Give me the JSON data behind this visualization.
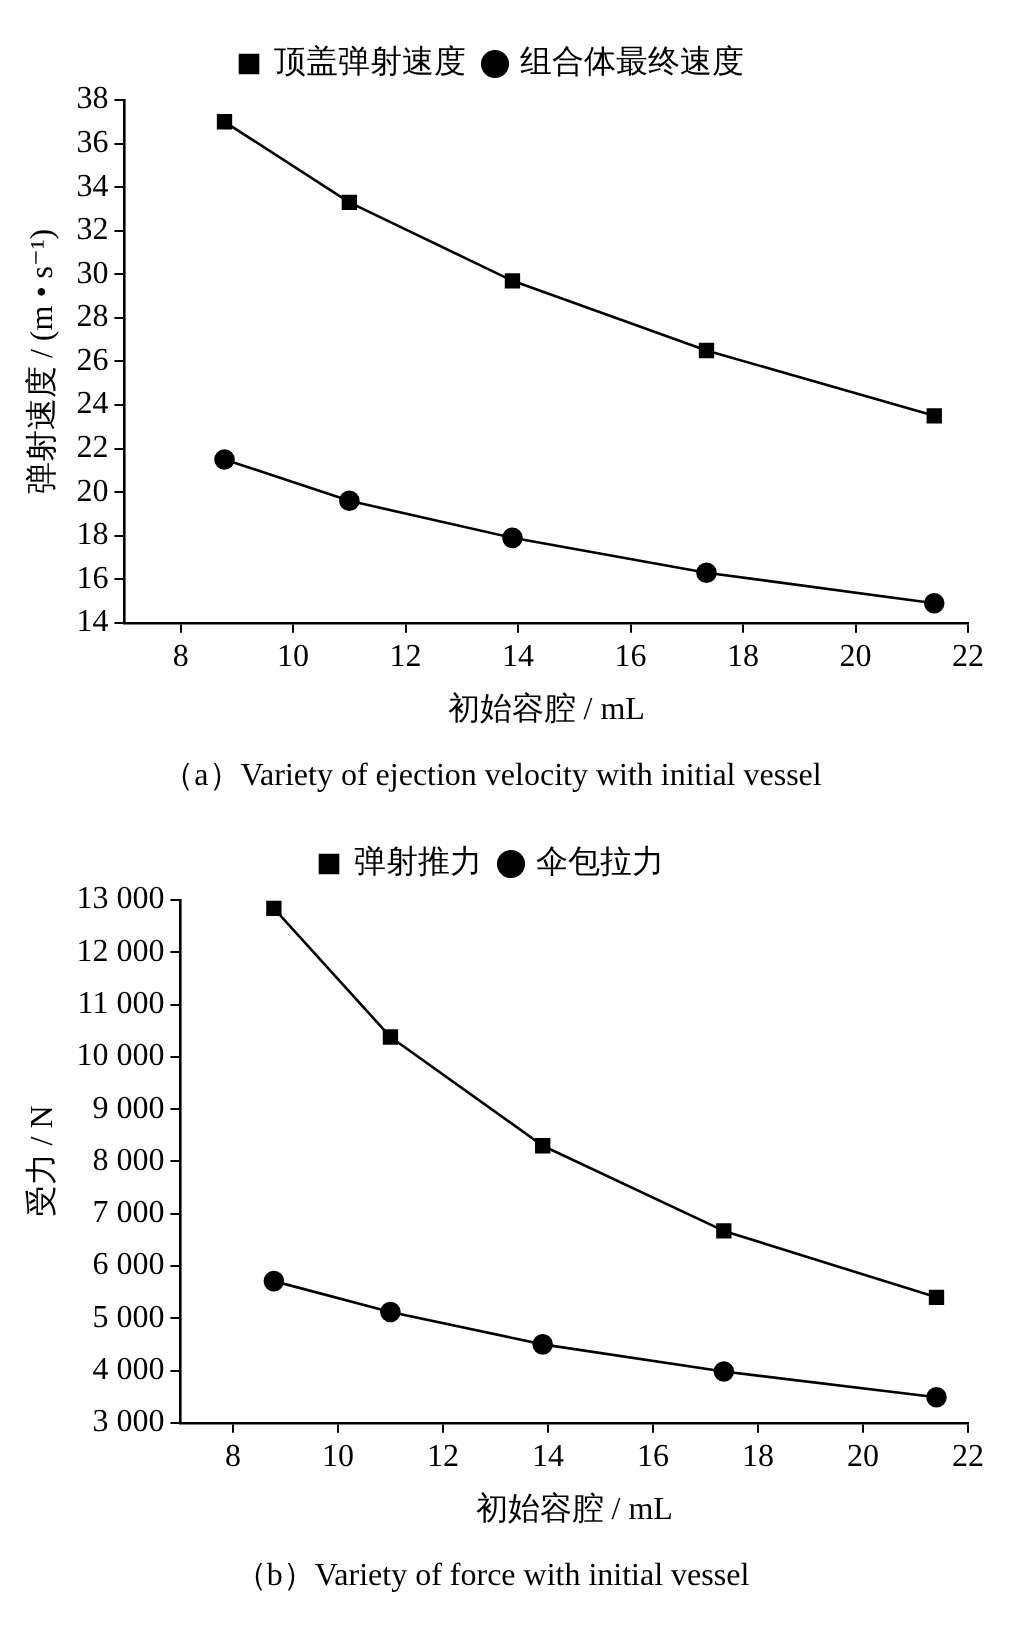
{
  "chart_data": [
    {
      "type": "line",
      "title": "（a）Variety of ejection velocity with initial vessel",
      "xlabel": "初始容腔 / mL",
      "ylabel": "弹射速度 / (m • s⁻¹)",
      "x": [
        8.78,
        11.0,
        13.9,
        17.35,
        21.4
      ],
      "series": [
        {
          "name": "顶盖弹射速度",
          "color": "#000000",
          "marker": "square",
          "values": [
            37.0,
            33.3,
            29.7,
            26.5,
            23.5
          ]
        },
        {
          "name": "组合体最终速度",
          "color": "#000000",
          "marker": "circle",
          "values": [
            21.5,
            19.6,
            17.9,
            16.3,
            14.9
          ]
        }
      ],
      "xlim": [
        7,
        22
      ],
      "xticks": [
        8,
        10,
        12,
        14,
        16,
        18,
        20,
        22
      ],
      "ylim": [
        14,
        38
      ],
      "yticks": [
        14,
        16,
        18,
        20,
        22,
        24,
        26,
        28,
        30,
        32,
        34,
        36,
        38
      ],
      "grid": false,
      "legend": "top",
      "line_style": "solid"
    },
    {
      "type": "line",
      "title": "（b）Variety of force with initial vessel",
      "xlabel": "初始容腔 / mL",
      "ylabel": "受力 / N",
      "x": [
        8.78,
        11.0,
        13.9,
        17.35,
        21.4
      ],
      "series": [
        {
          "name": "弹射推力",
          "color": "#000000",
          "marker": "square",
          "values": [
            12840,
            10380,
            8300,
            6670,
            5400
          ]
        },
        {
          "name": "伞包拉力",
          "color": "#000000",
          "marker": "circle",
          "values": [
            5710,
            5120,
            4500,
            3980,
            3490
          ]
        }
      ],
      "xlim": [
        7,
        22
      ],
      "xticks": [
        8,
        10,
        12,
        14,
        16,
        18,
        20,
        22
      ],
      "ylim": [
        3000,
        13000
      ],
      "yticks": [
        {
          "value": 3000,
          "label": "3 000"
        },
        {
          "value": 4000,
          "label": "4 000"
        },
        {
          "value": 5000,
          "label": "5 000"
        },
        {
          "value": 6000,
          "label": "6 000"
        },
        {
          "value": 7000,
          "label": "7 000"
        },
        {
          "value": 8000,
          "label": "8 000"
        },
        {
          "value": 9000,
          "label": "9 000"
        },
        {
          "value": 10000,
          "label": "10 000"
        },
        {
          "value": 11000,
          "label": "11 000"
        },
        {
          "value": 12000,
          "label": "12 000"
        },
        {
          "value": 13000,
          "label": "13 000"
        }
      ],
      "grid": false,
      "legend": "top",
      "line_style": "solid"
    }
  ]
}
